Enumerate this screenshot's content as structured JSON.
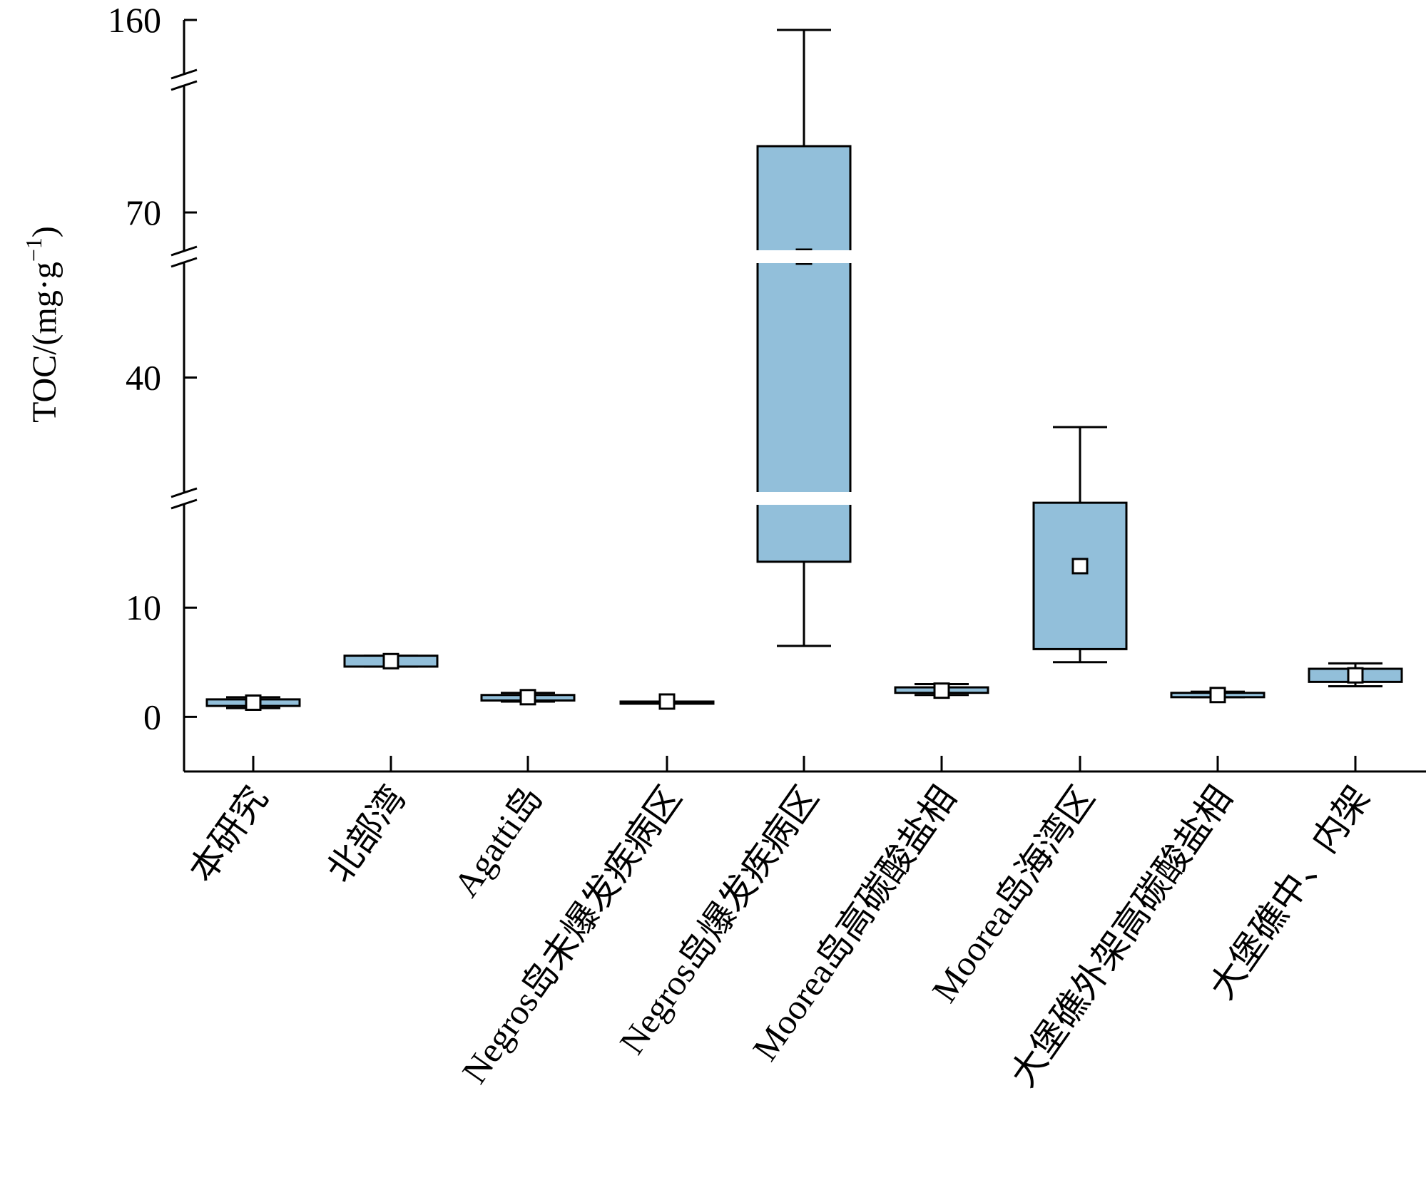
{
  "chart_data": {
    "type": "box",
    "ylabel": "TOC/(mg·g⁻¹)",
    "ylabel_main": "TOC/(mg·g",
    "ylabel_sup": "−1",
    "ylabel_close": ")",
    "yticks": [
      "0",
      "10",
      "40",
      "70",
      "160"
    ],
    "y_break_axis": true,
    "y_segments": [
      {
        "range": [
          -5,
          20
        ]
      },
      {
        "range": [
          20,
          60
        ]
      },
      {
        "range": [
          60,
          100
        ]
      },
      {
        "range": [
          100,
          160
        ]
      }
    ],
    "box_color": "#92BFDA",
    "categories": [
      "本研究",
      "北部湾",
      "Agatti岛",
      "Negros岛未爆发疾病区",
      "Negros岛爆发疾病区",
      "Moorea岛高碳酸盐相",
      "Moorea岛海湾区",
      "大堡礁外架高碳酸盐相",
      "大堡礁中、内架"
    ],
    "boxes": [
      {
        "whisker_low": 0.8,
        "q1": 1.0,
        "q3": 1.6,
        "whisker_high": 1.8,
        "mean": 1.3
      },
      {
        "whisker_low": 4.6,
        "q1": 4.6,
        "q3": 5.6,
        "whisker_high": 5.6,
        "mean": 5.1
      },
      {
        "whisker_low": 1.4,
        "q1": 1.5,
        "q3": 2.0,
        "whisker_high": 2.2,
        "mean": 1.8
      },
      {
        "whisker_low": 1.4,
        "q1": 1.4,
        "q3": 1.4,
        "whisker_high": 1.4,
        "mean": 1.4
      },
      {
        "whisker_low": 6.5,
        "q1": 14.2,
        "q3": 85,
        "whisker_high": 150,
        "mean": 60
      },
      {
        "whisker_low": 2.0,
        "q1": 2.2,
        "q3": 2.7,
        "whisker_high": 3.0,
        "mean": 2.4
      },
      {
        "whisker_low": 5.0,
        "q1": 6.2,
        "q3": 19.6,
        "whisker_high": 31.8,
        "mean": 13.8
      },
      {
        "whisker_low": 1.8,
        "q1": 1.8,
        "q3": 2.2,
        "whisker_high": 2.3,
        "mean": 2.0
      },
      {
        "whisker_low": 2.8,
        "q1": 3.2,
        "q3": 4.4,
        "whisker_high": 4.9,
        "mean": 3.8
      }
    ]
  }
}
